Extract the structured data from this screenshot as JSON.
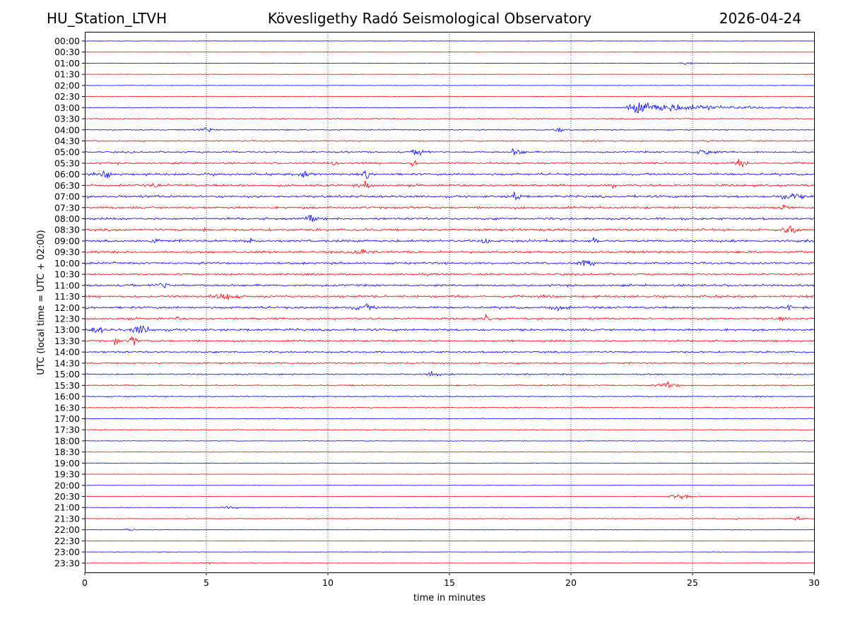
{
  "header": {
    "station": "HU_Station_LTVH",
    "title": "Kövesligethy Radó Seismological Observatory",
    "date": "2026-04-24"
  },
  "chart_data": {
    "type": "line",
    "subtype": "helicorder",
    "xlabel": "time in minutes",
    "ylabel": "UTC (local time = UTC + 02:00)",
    "xlim": [
      0,
      30
    ],
    "x_ticks": [
      0,
      5,
      10,
      15,
      20,
      25,
      30
    ],
    "row_labels": [
      "00:00",
      "00:30",
      "01:00",
      "01:30",
      "02:00",
      "02:30",
      "03:00",
      "03:30",
      "04:00",
      "04:30",
      "05:00",
      "05:30",
      "06:00",
      "06:30",
      "07:00",
      "07:30",
      "08:00",
      "08:30",
      "09:00",
      "09:30",
      "10:00",
      "10:30",
      "11:00",
      "11:30",
      "12:00",
      "12:30",
      "13:00",
      "13:30",
      "14:00",
      "14:30",
      "15:00",
      "15:30",
      "16:00",
      "16:30",
      "17:00",
      "17:30",
      "18:00",
      "18:30",
      "19:00",
      "19:30",
      "20:00",
      "20:30",
      "21:00",
      "21:30",
      "22:00",
      "22:30",
      "23:00",
      "23:30"
    ],
    "trace_colors": [
      "#0000ff",
      "#ff0000"
    ],
    "noise_level": [
      0.5,
      0.5,
      0.6,
      0.7,
      0.8,
      0.9,
      1.0,
      1.2,
      1.5,
      1.8,
      2.2,
      2.6,
      3.0,
      3.1,
      3.2,
      3.0,
      3.0,
      3.1,
      3.2,
      3.0,
      2.8,
      2.6,
      2.8,
      3.0,
      3.0,
      2.8,
      3.0,
      2.6,
      2.4,
      2.2,
      2.0,
      1.8,
      1.6,
      1.4,
      1.2,
      1.0,
      0.9,
      0.8,
      0.7,
      0.6,
      0.5,
      0.9,
      0.8,
      0.9,
      0.6,
      0.4,
      0.5,
      0.6
    ],
    "events": [
      {
        "row": "01:00",
        "t": 24.8,
        "amp": 3,
        "dur": 0.8
      },
      {
        "row": "01:30",
        "t": 29.8,
        "amp": 3,
        "dur": 0.3
      },
      {
        "row": "03:00",
        "t": 22.5,
        "amp": 16,
        "dur": 5.5,
        "type": "quake"
      },
      {
        "row": "04:00",
        "t": 5.0,
        "amp": 5,
        "dur": 0.8
      },
      {
        "row": "04:00",
        "t": 19.5,
        "amp": 4,
        "dur": 1.0
      },
      {
        "row": "05:00",
        "t": 13.8,
        "amp": 7,
        "dur": 0.8
      },
      {
        "row": "05:00",
        "t": 17.8,
        "amp": 10,
        "dur": 0.6
      },
      {
        "row": "05:00",
        "t": 25.5,
        "amp": 7,
        "dur": 1.0
      },
      {
        "row": "05:30",
        "t": 13.5,
        "amp": 10,
        "dur": 0.3
      },
      {
        "row": "05:30",
        "t": 10.3,
        "amp": 8,
        "dur": 0.3
      },
      {
        "row": "05:30",
        "t": 27.0,
        "amp": 8,
        "dur": 0.6
      },
      {
        "row": "06:00",
        "t": 0.9,
        "amp": 8,
        "dur": 0.5
      },
      {
        "row": "06:00",
        "t": 11.6,
        "amp": 8,
        "dur": 0.4
      },
      {
        "row": "06:00",
        "t": 9.2,
        "amp": 6,
        "dur": 1.0
      },
      {
        "row": "06:30",
        "t": 11.5,
        "amp": 10,
        "dur": 0.6
      },
      {
        "row": "06:30",
        "t": 2.9,
        "amp": 7,
        "dur": 0.3
      },
      {
        "row": "06:30",
        "t": 21.7,
        "amp": 10,
        "dur": 0.2
      },
      {
        "row": "07:00",
        "t": 17.7,
        "amp": 11,
        "dur": 0.5
      },
      {
        "row": "07:00",
        "t": 29.0,
        "amp": 8,
        "dur": 1.2
      },
      {
        "row": "07:30",
        "t": 28.7,
        "amp": 9,
        "dur": 0.4
      },
      {
        "row": "08:00",
        "t": 9.3,
        "amp": 9,
        "dur": 0.6
      },
      {
        "row": "08:30",
        "t": 29.0,
        "amp": 11,
        "dur": 0.6
      },
      {
        "row": "08:30",
        "t": 5.0,
        "amp": 6,
        "dur": 0.6
      },
      {
        "row": "09:00",
        "t": 6.8,
        "amp": 10,
        "dur": 0.3
      },
      {
        "row": "09:00",
        "t": 16.5,
        "amp": 9,
        "dur": 0.4
      },
      {
        "row": "09:00",
        "t": 2.9,
        "amp": 7,
        "dur": 0.5
      },
      {
        "row": "09:00",
        "t": 21.0,
        "amp": 8,
        "dur": 0.4
      },
      {
        "row": "09:30",
        "t": 11.5,
        "amp": 6,
        "dur": 1.0
      },
      {
        "row": "10:00",
        "t": 20.6,
        "amp": 6,
        "dur": 0.8
      },
      {
        "row": "11:00",
        "t": 3.2,
        "amp": 6,
        "dur": 1.0
      },
      {
        "row": "11:30",
        "t": 5.8,
        "amp": 7,
        "dur": 1.2
      },
      {
        "row": "12:00",
        "t": 11.5,
        "amp": 6,
        "dur": 1.2
      },
      {
        "row": "12:00",
        "t": 29.0,
        "amp": 9,
        "dur": 0.2
      },
      {
        "row": "12:00",
        "t": 19.5,
        "amp": 5,
        "dur": 1.0
      },
      {
        "row": "12:30",
        "t": 16.5,
        "amp": 9,
        "dur": 0.3
      },
      {
        "row": "12:30",
        "t": 28.7,
        "amp": 8,
        "dur": 0.3
      },
      {
        "row": "12:30",
        "t": 3.8,
        "amp": 6,
        "dur": 0.2
      },
      {
        "row": "13:00",
        "t": 2.3,
        "amp": 10,
        "dur": 1.0
      },
      {
        "row": "13:00",
        "t": 0.5,
        "amp": 7,
        "dur": 0.8
      },
      {
        "row": "13:30",
        "t": 2.0,
        "amp": 11,
        "dur": 0.4
      },
      {
        "row": "13:30",
        "t": 1.3,
        "amp": 8,
        "dur": 0.3
      },
      {
        "row": "15:00",
        "t": 14.3,
        "amp": 5,
        "dur": 0.8
      },
      {
        "row": "15:30",
        "t": 24.0,
        "amp": 7,
        "dur": 1.0
      },
      {
        "row": "20:30",
        "t": 24.5,
        "amp": 6,
        "dur": 1.2
      },
      {
        "row": "21:00",
        "t": 6.0,
        "amp": 3,
        "dur": 1.0
      },
      {
        "row": "21:30",
        "t": 29.3,
        "amp": 4,
        "dur": 1.0
      },
      {
        "row": "21:30",
        "t": 26.8,
        "amp": 4,
        "dur": 0.3
      },
      {
        "row": "22:00",
        "t": 1.8,
        "amp": 3,
        "dur": 0.6
      },
      {
        "row": "23:30",
        "t": 5.0,
        "amp": 3,
        "dur": 1.0
      }
    ]
  }
}
